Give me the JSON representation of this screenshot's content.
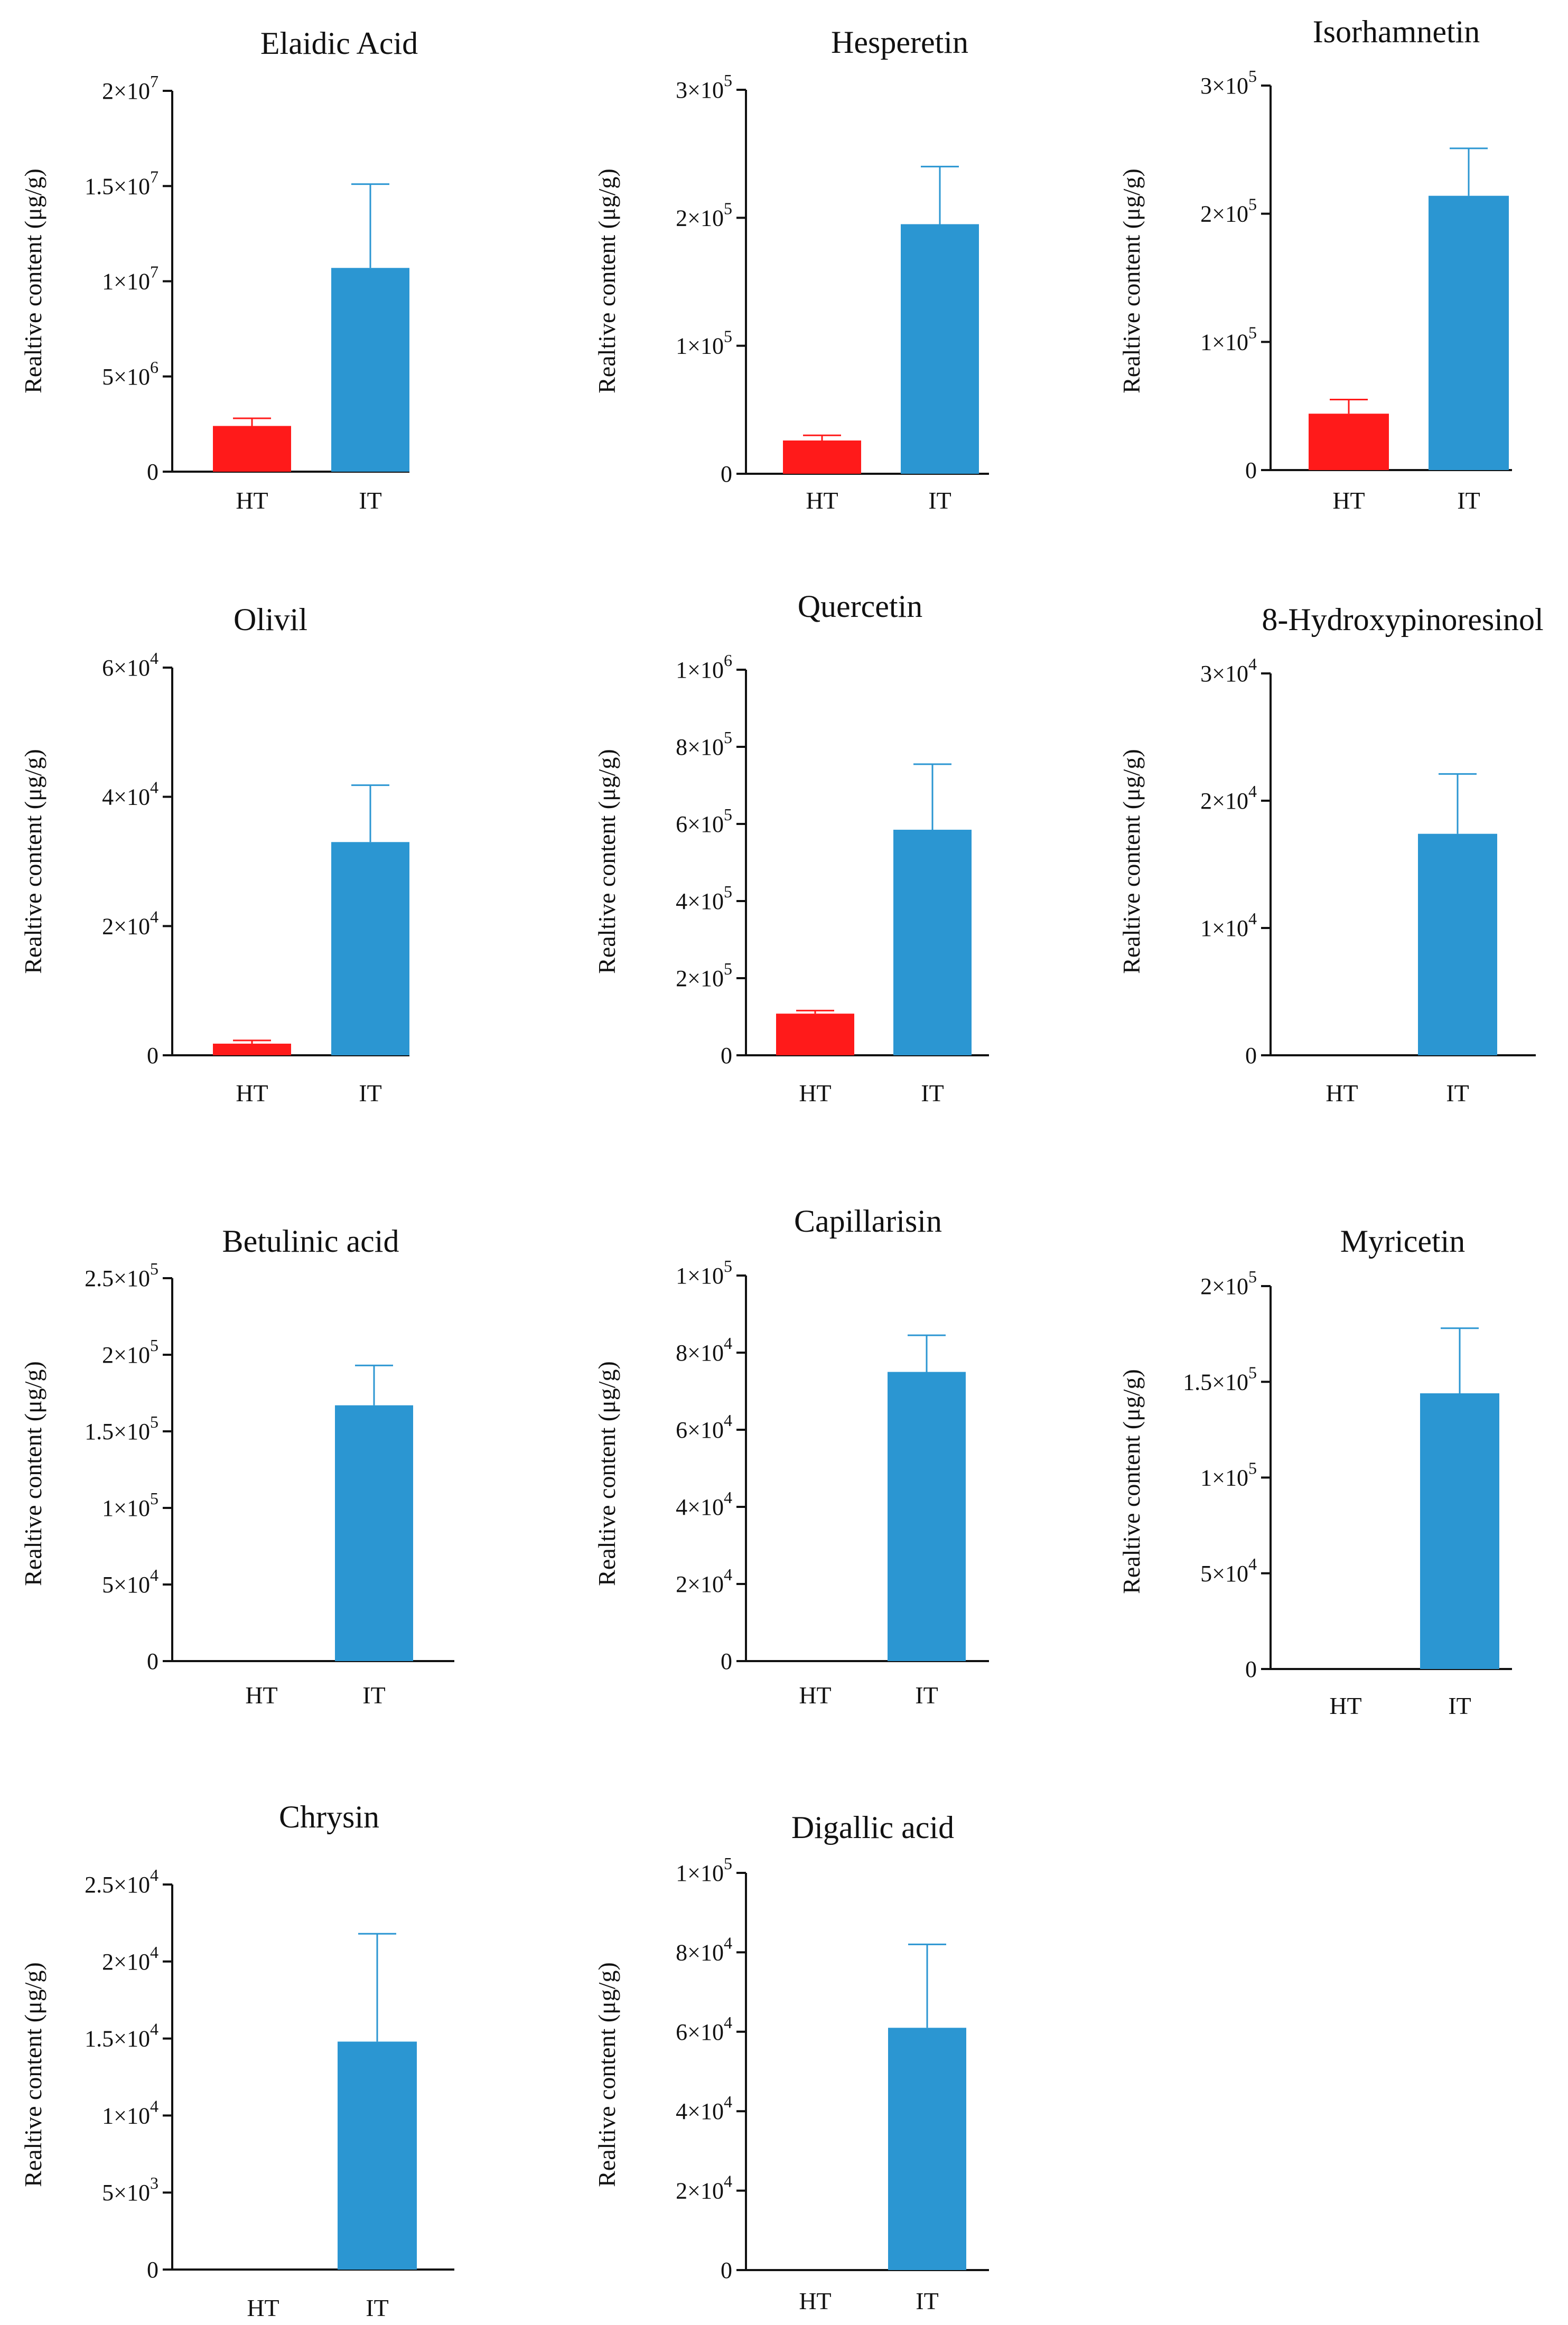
{
  "figure": {
    "groups": [
      "HT",
      "IT"
    ]
  },
  "colors": {
    "HT": "#ff1a1a",
    "IT": "#2b96d2",
    "axis": "#111111"
  },
  "chart_data": [
    {
      "type": "bar",
      "title": "Elaidic Acid",
      "ylabel": "Realtive content (μg/g)",
      "categories": [
        "HT",
        "IT"
      ],
      "values": [
        2400000,
        10700000
      ],
      "errors": [
        400000,
        4400000
      ],
      "ylim": [
        0,
        20000000
      ],
      "yticks": [
        {
          "v": 0,
          "m": "0",
          "e": ""
        },
        {
          "v": 5000000,
          "m": "5×10",
          "e": "6"
        },
        {
          "v": 10000000,
          "m": "1×10",
          "e": "7"
        },
        {
          "v": 15000000,
          "m": "1.5×10",
          "e": "7"
        },
        {
          "v": 20000000,
          "m": "2×10",
          "e": "7"
        }
      ]
    },
    {
      "type": "bar",
      "title": "Hesperetin",
      "ylabel": "Realtive content (μg/g)",
      "categories": [
        "HT",
        "IT"
      ],
      "values": [
        26000,
        195000
      ],
      "errors": [
        4000,
        45000
      ],
      "ylim": [
        0,
        300000
      ],
      "yticks": [
        {
          "v": 0,
          "m": "0",
          "e": ""
        },
        {
          "v": 100000,
          "m": "1×10",
          "e": "5"
        },
        {
          "v": 200000,
          "m": "2×10",
          "e": "5"
        },
        {
          "v": 300000,
          "m": "3×10",
          "e": "5"
        }
      ]
    },
    {
      "type": "bar",
      "title": "Isorhamnetin",
      "ylabel": "Realtive content (μg/g)",
      "categories": [
        "HT",
        "IT"
      ],
      "values": [
        44000,
        214000
      ],
      "errors": [
        11000,
        37000
      ],
      "ylim": [
        0,
        300000
      ],
      "yticks": [
        {
          "v": 0,
          "m": "0",
          "e": ""
        },
        {
          "v": 100000,
          "m": "1×10",
          "e": "5"
        },
        {
          "v": 200000,
          "m": "2×10",
          "e": "5"
        },
        {
          "v": 300000,
          "m": "3×10",
          "e": "5"
        }
      ]
    },
    {
      "type": "bar",
      "title": "Olivil",
      "ylabel": "Realtive content (μg/g)",
      "categories": [
        "HT",
        "IT"
      ],
      "values": [
        1800,
        33000
      ],
      "errors": [
        500,
        8800
      ],
      "ylim": [
        0,
        60000
      ],
      "yticks": [
        {
          "v": 0,
          "m": "0",
          "e": ""
        },
        {
          "v": 20000,
          "m": "2×10",
          "e": "4"
        },
        {
          "v": 40000,
          "m": "4×10",
          "e": "4"
        },
        {
          "v": 60000,
          "m": "6×10",
          "e": "4"
        }
      ]
    },
    {
      "type": "bar",
      "title": "Quercetin",
      "ylabel": "Realtive content (μg/g)",
      "categories": [
        "HT",
        "IT"
      ],
      "values": [
        108000,
        585000
      ],
      "errors": [
        8000,
        170000
      ],
      "ylim": [
        0,
        1000000
      ],
      "yticks": [
        {
          "v": 0,
          "m": "0",
          "e": ""
        },
        {
          "v": 200000,
          "m": "2×10",
          "e": "5"
        },
        {
          "v": 400000,
          "m": "4×10",
          "e": "5"
        },
        {
          "v": 600000,
          "m": "6×10",
          "e": "5"
        },
        {
          "v": 800000,
          "m": "8×10",
          "e": "5"
        },
        {
          "v": 1000000,
          "m": "1×10",
          "e": "6"
        }
      ]
    },
    {
      "type": "bar",
      "title": "8-Hydroxypinoresinol",
      "ylabel": "Realtive content (μg/g)",
      "categories": [
        "HT",
        "IT"
      ],
      "values": [
        0,
        17400
      ],
      "errors": [
        0,
        4700
      ],
      "ylim": [
        0,
        30000
      ],
      "yticks": [
        {
          "v": 0,
          "m": "0",
          "e": ""
        },
        {
          "v": 10000,
          "m": "1×10",
          "e": "4"
        },
        {
          "v": 20000,
          "m": "2×10",
          "e": "4"
        },
        {
          "v": 30000,
          "m": "3×10",
          "e": "4"
        }
      ]
    },
    {
      "type": "bar",
      "title": "Betulinic acid",
      "ylabel": "Realtive content (μg/g)",
      "categories": [
        "HT",
        "IT"
      ],
      "values": [
        0,
        167000
      ],
      "errors": [
        0,
        26000
      ],
      "ylim": [
        0,
        250000
      ],
      "yticks": [
        {
          "v": 0,
          "m": "0",
          "e": ""
        },
        {
          "v": 50000,
          "m": "5×10",
          "e": "4"
        },
        {
          "v": 100000,
          "m": "1×10",
          "e": "5"
        },
        {
          "v": 150000,
          "m": "1.5×10",
          "e": "5"
        },
        {
          "v": 200000,
          "m": "2×10",
          "e": "5"
        },
        {
          "v": 250000,
          "m": "2.5×10",
          "e": "5"
        }
      ]
    },
    {
      "type": "bar",
      "title": "Capillarisin",
      "ylabel": "Realtive content (μg/g)",
      "categories": [
        "HT",
        "IT"
      ],
      "values": [
        0,
        75000
      ],
      "errors": [
        0,
        9500
      ],
      "ylim": [
        0,
        100000
      ],
      "yticks": [
        {
          "v": 0,
          "m": "0",
          "e": ""
        },
        {
          "v": 20000,
          "m": "2×10",
          "e": "4"
        },
        {
          "v": 40000,
          "m": "4×10",
          "e": "4"
        },
        {
          "v": 60000,
          "m": "6×10",
          "e": "4"
        },
        {
          "v": 80000,
          "m": "8×10",
          "e": "4"
        },
        {
          "v": 100000,
          "m": "1×10",
          "e": "5"
        }
      ]
    },
    {
      "type": "bar",
      "title": "Myricetin",
      "ylabel": "Realtive content (μg/g)",
      "categories": [
        "HT",
        "IT"
      ],
      "values": [
        0,
        144000
      ],
      "errors": [
        0,
        34000
      ],
      "ylim": [
        0,
        200000
      ],
      "yticks": [
        {
          "v": 0,
          "m": "0",
          "e": ""
        },
        {
          "v": 50000,
          "m": "5×10",
          "e": "4"
        },
        {
          "v": 100000,
          "m": "1×10",
          "e": "5"
        },
        {
          "v": 150000,
          "m": "1.5×10",
          "e": "5"
        },
        {
          "v": 200000,
          "m": "2×10",
          "e": "5"
        }
      ]
    },
    {
      "type": "bar",
      "title": "Chrysin",
      "ylabel": "Realtive content (μg/g)",
      "categories": [
        "HT",
        "IT"
      ],
      "values": [
        0,
        14800
      ],
      "errors": [
        0,
        7000
      ],
      "ylim": [
        0,
        25000
      ],
      "yticks": [
        {
          "v": 0,
          "m": "0",
          "e": ""
        },
        {
          "v": 5000,
          "m": "5×10",
          "e": "3"
        },
        {
          "v": 10000,
          "m": "1×10",
          "e": "4"
        },
        {
          "v": 15000,
          "m": "1.5×10",
          "e": "4"
        },
        {
          "v": 20000,
          "m": "2×10",
          "e": "4"
        },
        {
          "v": 25000,
          "m": "2.5×10",
          "e": "4"
        }
      ]
    },
    {
      "type": "bar",
      "title": "Digallic acid",
      "ylabel": "Realtive content (μg/g)",
      "categories": [
        "HT",
        "IT"
      ],
      "values": [
        0,
        61000
      ],
      "errors": [
        0,
        21000
      ],
      "ylim": [
        0,
        100000
      ],
      "yticks": [
        {
          "v": 0,
          "m": "0",
          "e": ""
        },
        {
          "v": 20000,
          "m": "2×10",
          "e": "4"
        },
        {
          "v": 40000,
          "m": "4×10",
          "e": "4"
        },
        {
          "v": 60000,
          "m": "6×10",
          "e": "4"
        },
        {
          "v": 80000,
          "m": "8×10",
          "e": "4"
        },
        {
          "v": 100000,
          "m": "1×10",
          "e": "5"
        }
      ]
    }
  ]
}
